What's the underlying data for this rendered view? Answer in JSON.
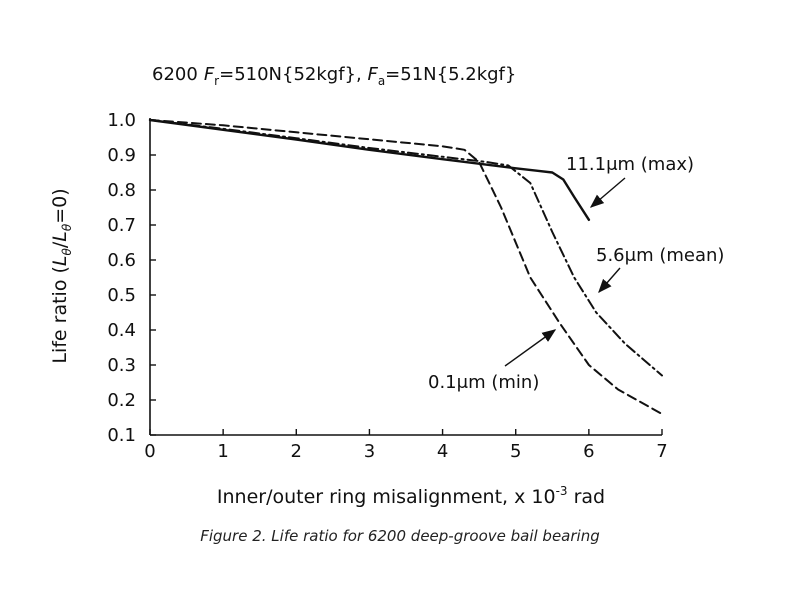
{
  "chart_data": {
    "type": "line",
    "title": {
      "model": "6200",
      "fr_symbol": "F",
      "fr_sub": "r",
      "fr_value": "=510N{52kgf}, ",
      "fa_symbol": "F",
      "fa_sub": "a",
      "fa_value": "=51N{5.2kgf}"
    },
    "xlabel": "Inner/outer ring misalignment, x 10",
    "xlabel_exp": "-3",
    "xlabel_unit": " rad",
    "ylabel": {
      "prefix": "Life ratio (",
      "num": "L",
      "num_sub": "θ",
      "slash": "/",
      "den": "L",
      "den_sub": "θ",
      "suffix": "=0)"
    },
    "xlim": [
      0,
      7
    ],
    "ylim": [
      0.1,
      1.0
    ],
    "x_ticks": [
      "0",
      "1",
      "2",
      "3",
      "4",
      "5",
      "6",
      "7"
    ],
    "y_ticks": [
      "0.1",
      "0.2",
      "0.3",
      "0.4",
      "0.5",
      "0.6",
      "0.7",
      "0.8",
      "0.9",
      "1.0"
    ],
    "grid": false,
    "series": [
      {
        "name": "11.1μm (max)",
        "style": "solid",
        "x": [
          0,
          1,
          2,
          3,
          4,
          5,
          5.3,
          5.5,
          5.65,
          5.8,
          6.0
        ],
        "y": [
          1.0,
          0.972,
          0.944,
          0.915,
          0.888,
          0.862,
          0.855,
          0.85,
          0.83,
          0.78,
          0.715
        ]
      },
      {
        "name": "5.6μm (mean)",
        "style": "dashdot",
        "x": [
          0,
          1,
          2,
          3,
          4,
          4.6,
          4.9,
          5.2,
          5.5,
          5.8,
          6.1,
          6.5,
          7.0
        ],
        "y": [
          1.0,
          0.975,
          0.948,
          0.92,
          0.895,
          0.88,
          0.87,
          0.82,
          0.68,
          0.55,
          0.45,
          0.36,
          0.27
        ]
      },
      {
        "name": "0.1μm (min)",
        "style": "dashed",
        "x": [
          0,
          1,
          2,
          3,
          4,
          4.3,
          4.5,
          4.8,
          5.2,
          5.6,
          6.0,
          6.4,
          7.0
        ],
        "y": [
          1.0,
          0.985,
          0.965,
          0.945,
          0.925,
          0.915,
          0.88,
          0.75,
          0.55,
          0.42,
          0.3,
          0.23,
          0.16
        ]
      }
    ],
    "annotations": [
      {
        "label": "11.1",
        "mu": "μ",
        "rest": "m (max)",
        "series": "11.1μm (max)"
      },
      {
        "label": "5.6",
        "mu": "μ",
        "rest": "m (mean)",
        "series": "5.6μm (mean)"
      },
      {
        "label": "0.1",
        "mu": "μ",
        "rest": "m (min)",
        "series": "0.1μm (min)"
      }
    ]
  },
  "caption": "Figure 2. Life ratio for 6200 deep-groove bail bearing"
}
